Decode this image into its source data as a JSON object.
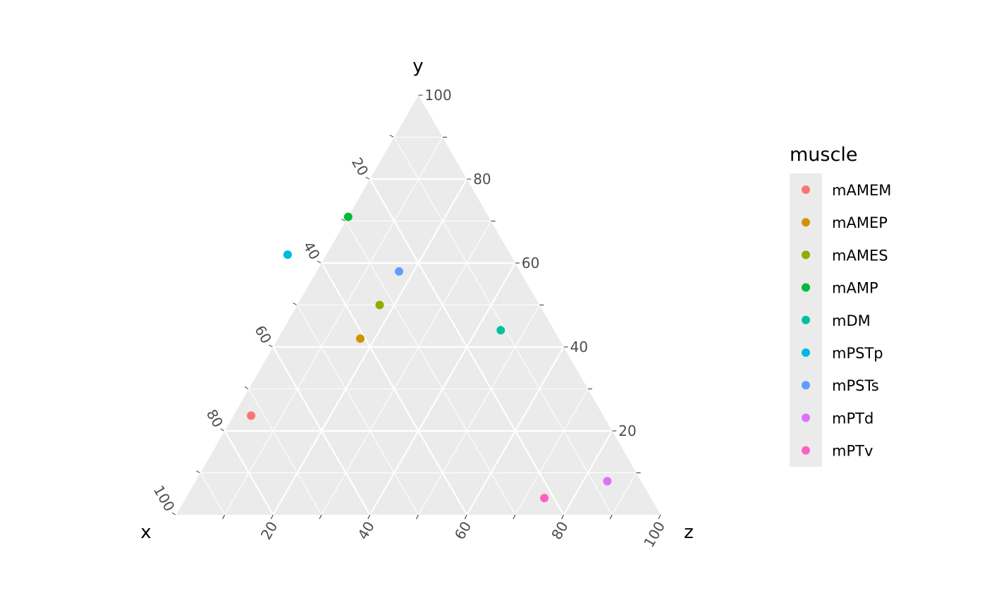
{
  "chart_data": {
    "type": "scatter",
    "subtype": "ternary",
    "axes": {
      "x": {
        "label": "x",
        "ticks": [
          "20",
          "40",
          "60",
          "80",
          "100"
        ]
      },
      "y": {
        "label": "y",
        "ticks": [
          "20",
          "40",
          "60",
          "80",
          "100"
        ]
      },
      "z": {
        "label": "z",
        "ticks": [
          "20",
          "40",
          "60",
          "80",
          "100"
        ]
      }
    },
    "tick_values": [
      20,
      40,
      60,
      80,
      100
    ],
    "grid": true,
    "legend": {
      "title": "muscle",
      "placement": "right"
    },
    "series": [
      {
        "name": "mAMEM",
        "color": "#F8766D",
        "x": 80,
        "y": 26,
        "z": 4
      },
      {
        "name": "mAMEP",
        "color": "#D39200",
        "x": 41,
        "y": 42,
        "z": 17
      },
      {
        "name": "mAMES",
        "color": "#93AA00",
        "x": 33,
        "y": 50,
        "z": 17
      },
      {
        "name": "mAMP",
        "color": "#00BA38",
        "x": 29,
        "y": 71,
        "z": 0
      },
      {
        "name": "mDM",
        "color": "#00C19F",
        "x": 11,
        "y": 44,
        "z": 45
      },
      {
        "name": "mPSTp",
        "color": "#00B9E3",
        "x": 46,
        "y": 62,
        "z": -8
      },
      {
        "name": "mPSTs",
        "color": "#619CFF",
        "x": 25,
        "y": 58,
        "z": 17
      },
      {
        "name": "mPTd",
        "color": "#DB72FB",
        "x": 7,
        "y": 8,
        "z": 85
      },
      {
        "name": "mPTv",
        "color": "#FF61C3",
        "x": 22,
        "y": 4,
        "z": 74
      }
    ],
    "colors": {
      "panel": "#EBEBEB",
      "grid_major": "#FFFFFF",
      "tick_text": "#4D4D4D",
      "legend_key_bg": "#EBEBEB"
    }
  }
}
